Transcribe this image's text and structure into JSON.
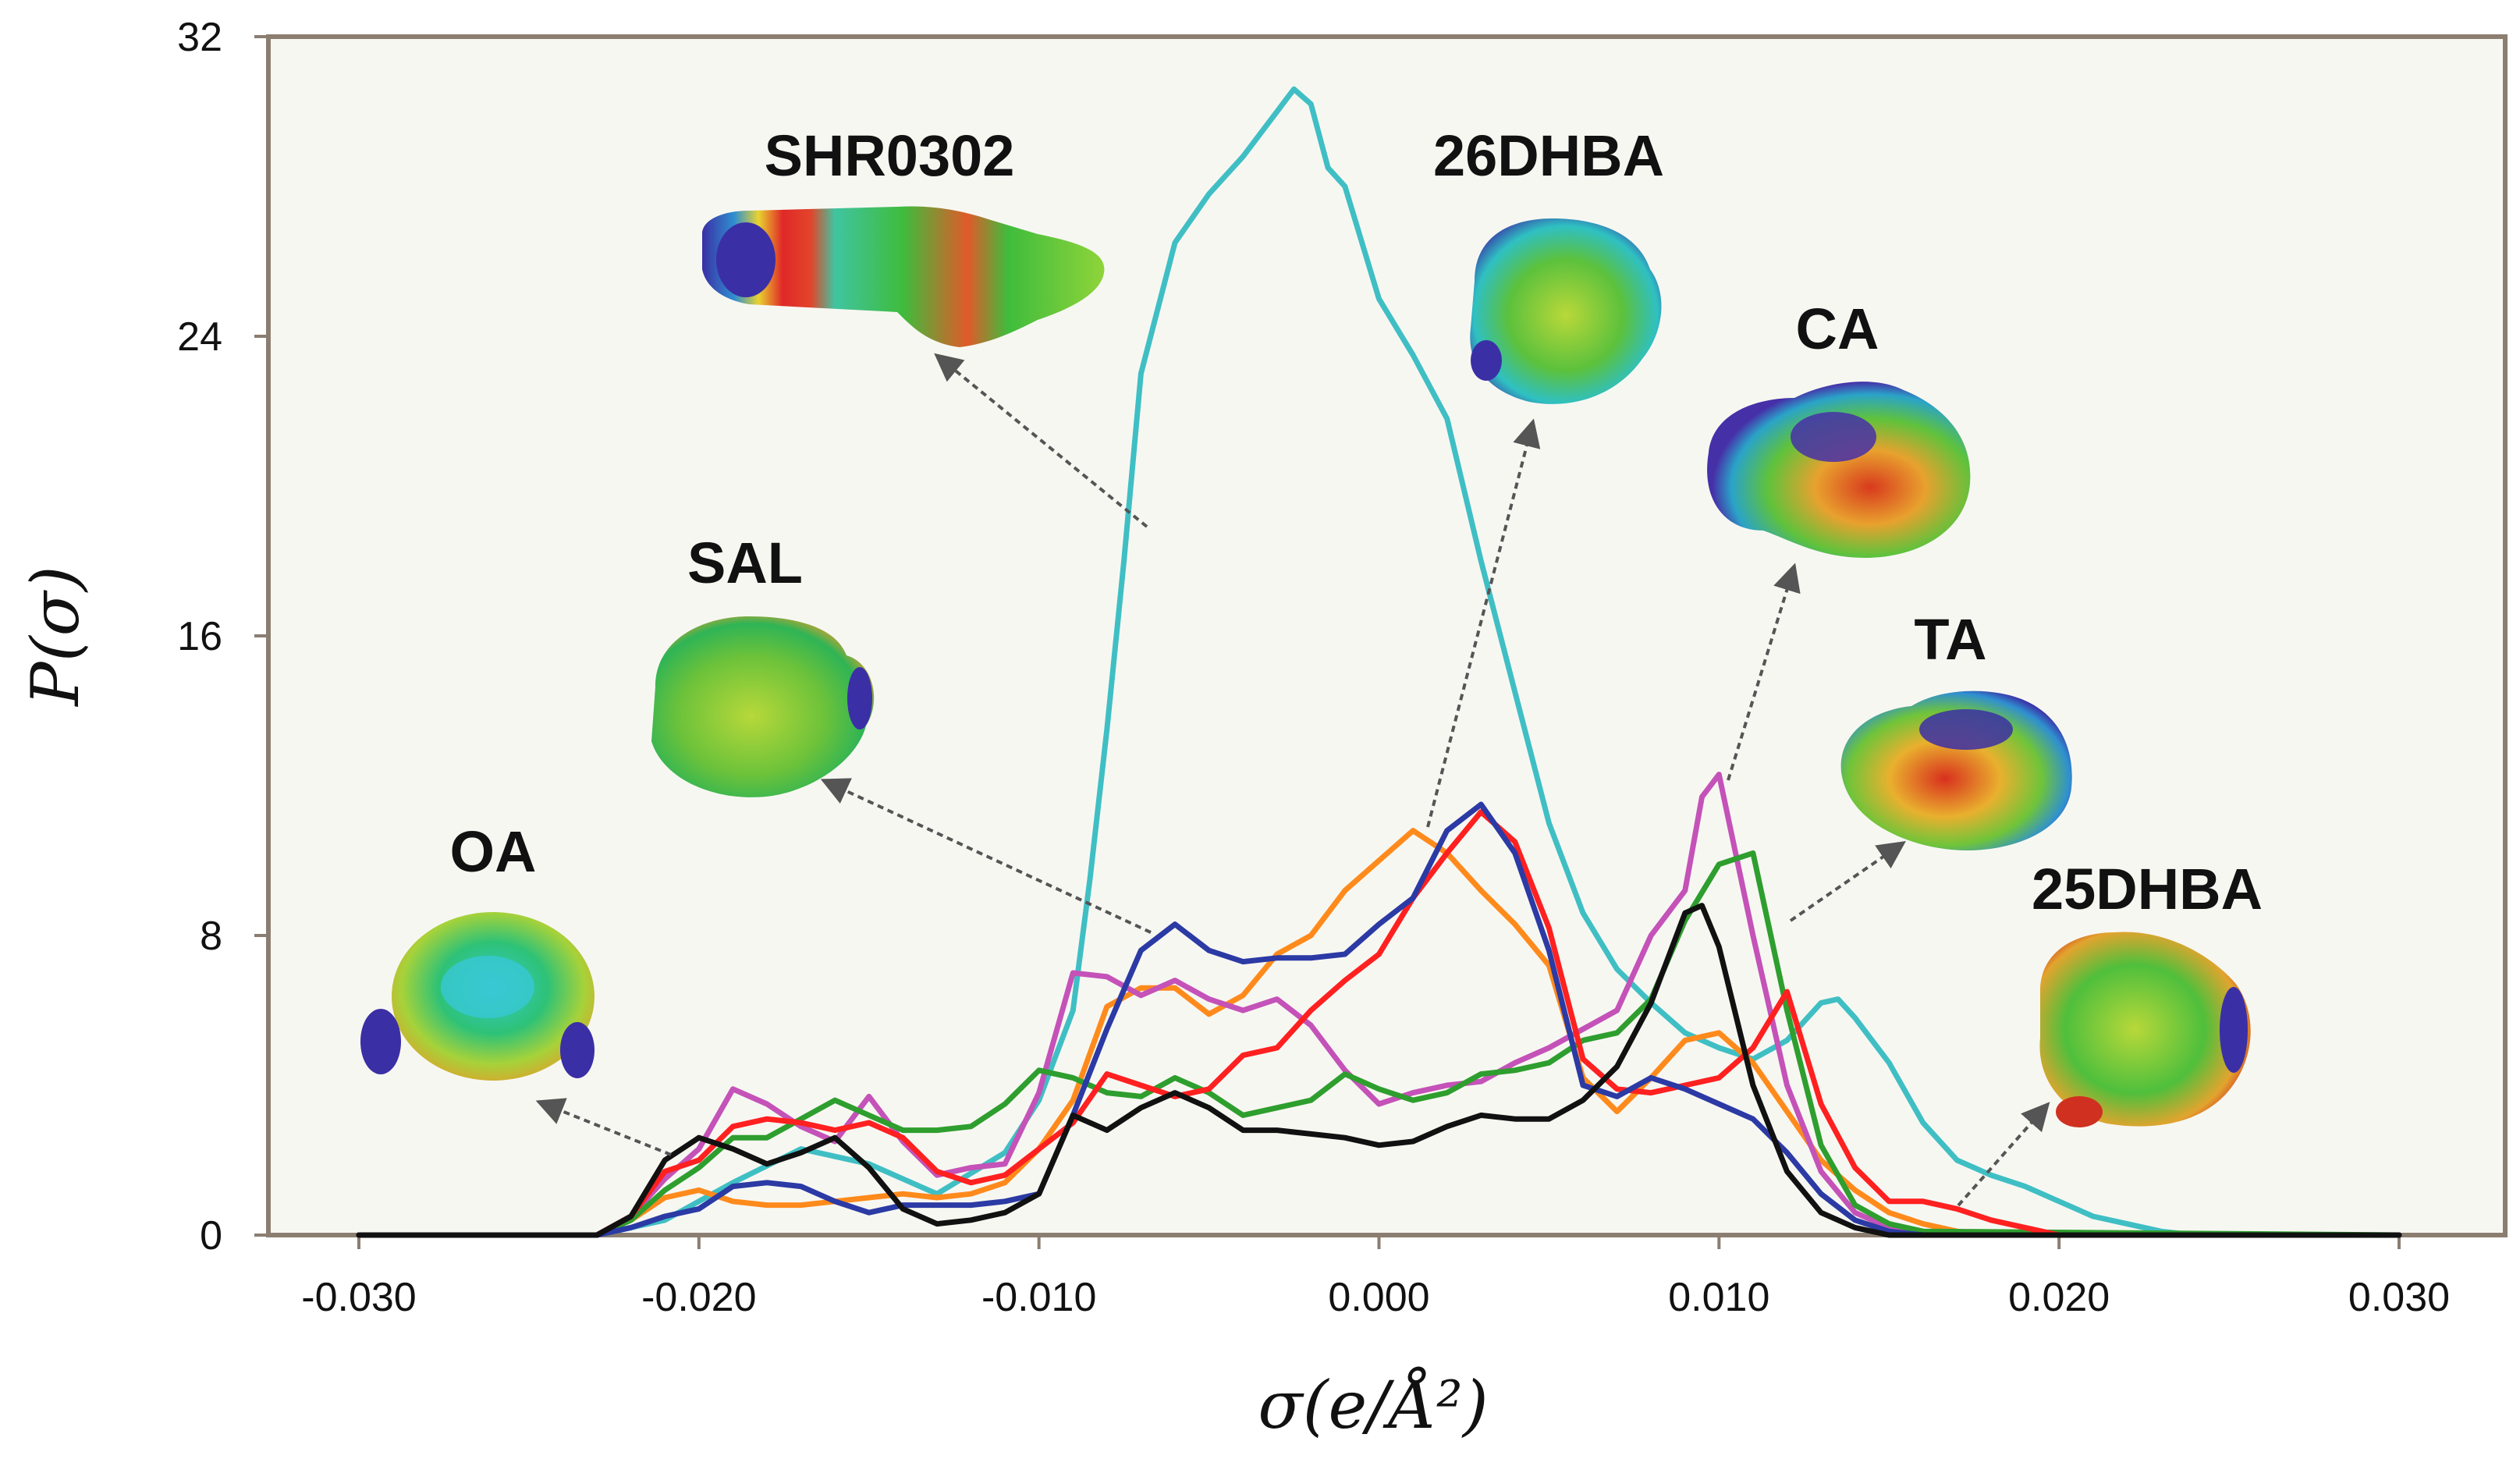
{
  "chart_data": {
    "type": "line",
    "title": "",
    "xlabel": "σ(e/Å²)",
    "ylabel": "P(σ)",
    "xlim": [
      -0.03,
      0.03
    ],
    "ylim": [
      0,
      32
    ],
    "x_ticks": [
      "-0.030",
      "-0.020",
      "-0.010",
      "0.000",
      "0.010",
      "0.020",
      "0.030"
    ],
    "y_ticks": [
      "0",
      "8",
      "16",
      "24",
      "32"
    ],
    "grid": false,
    "series": [
      {
        "name": "SHR0302",
        "color": "#3fbfc4",
        "x": [
          -0.03,
          -0.023,
          -0.021,
          -0.019,
          -0.017,
          -0.015,
          -0.013,
          -0.011,
          -0.01,
          -0.009,
          -0.0085,
          -0.008,
          -0.0075,
          -0.007,
          -0.006,
          -0.005,
          -0.004,
          -0.003,
          -0.0025,
          -0.002,
          -0.0015,
          -0.001,
          0.0,
          0.001,
          0.002,
          0.003,
          0.004,
          0.005,
          0.006,
          0.007,
          0.008,
          0.009,
          0.01,
          0.011,
          0.012,
          0.013,
          0.0135,
          0.014,
          0.015,
          0.016,
          0.017,
          0.018,
          0.019,
          0.02,
          0.021,
          0.022,
          0.023,
          0.024,
          0.03
        ],
        "y": [
          0,
          0,
          0.4,
          1.4,
          2.3,
          1.9,
          1.1,
          2.2,
          3.6,
          6.0,
          9.5,
          13.5,
          18.0,
          23.0,
          26.5,
          27.8,
          28.8,
          30.0,
          30.6,
          30.2,
          28.5,
          28.0,
          25.0,
          23.5,
          21.8,
          18.0,
          14.5,
          11.0,
          8.6,
          7.1,
          6.2,
          5.4,
          5.0,
          4.7,
          5.2,
          6.2,
          6.3,
          5.8,
          4.6,
          3.0,
          2.0,
          1.6,
          1.3,
          0.9,
          0.5,
          0.3,
          0.1,
          0,
          0
        ]
      },
      {
        "name": "26DHBA",
        "color": "#ff8a1c",
        "x": [
          -0.03,
          -0.023,
          -0.022,
          -0.021,
          -0.02,
          -0.019,
          -0.018,
          -0.017,
          -0.016,
          -0.015,
          -0.014,
          -0.013,
          -0.012,
          -0.011,
          -0.01,
          -0.009,
          -0.008,
          -0.007,
          -0.006,
          -0.005,
          -0.004,
          -0.003,
          -0.002,
          -0.001,
          0.0,
          0.001,
          0.002,
          0.003,
          0.004,
          0.005,
          0.006,
          0.007,
          0.008,
          0.009,
          0.01,
          0.011,
          0.012,
          0.013,
          0.014,
          0.015,
          0.016,
          0.017,
          0.018,
          0.019,
          0.03
        ],
        "y": [
          0,
          0,
          0.4,
          1.0,
          1.2,
          0.9,
          0.8,
          0.8,
          0.9,
          1.0,
          1.1,
          1.0,
          1.1,
          1.4,
          2.3,
          3.6,
          6.1,
          6.6,
          6.6,
          5.9,
          6.4,
          7.5,
          8.0,
          9.2,
          10.0,
          10.8,
          10.2,
          9.2,
          8.3,
          7.2,
          4.2,
          3.3,
          4.2,
          5.2,
          5.4,
          4.6,
          3.3,
          2.0,
          1.2,
          0.6,
          0.3,
          0.1,
          0,
          0,
          0
        ]
      },
      {
        "name": "CA",
        "color": "#c452b8",
        "x": [
          -0.03,
          -0.023,
          -0.022,
          -0.021,
          -0.02,
          -0.019,
          -0.018,
          -0.017,
          -0.016,
          -0.015,
          -0.014,
          -0.013,
          -0.012,
          -0.011,
          -0.01,
          -0.009,
          -0.008,
          -0.007,
          -0.006,
          -0.005,
          -0.004,
          -0.003,
          -0.002,
          -0.001,
          0.0,
          0.001,
          0.002,
          0.003,
          0.004,
          0.005,
          0.006,
          0.007,
          0.008,
          0.009,
          0.0095,
          0.01,
          0.011,
          0.012,
          0.013,
          0.014,
          0.015,
          0.016,
          0.017,
          0.03
        ],
        "y": [
          0,
          0,
          0.5,
          1.5,
          2.3,
          3.9,
          3.5,
          2.9,
          2.5,
          3.7,
          2.5,
          1.6,
          1.8,
          1.9,
          3.8,
          7.0,
          6.9,
          6.4,
          6.8,
          6.3,
          6.0,
          6.3,
          5.6,
          4.4,
          3.5,
          3.8,
          4.0,
          4.1,
          4.6,
          5.0,
          5.5,
          6.0,
          8.0,
          9.2,
          11.7,
          12.3,
          8.0,
          4.0,
          1.7,
          0.6,
          0.2,
          0.1,
          0,
          0
        ]
      },
      {
        "name": "TA",
        "color": "#2e9e2e",
        "x": [
          -0.03,
          -0.023,
          -0.022,
          -0.021,
          -0.02,
          -0.019,
          -0.018,
          -0.017,
          -0.016,
          -0.015,
          -0.014,
          -0.013,
          -0.012,
          -0.011,
          -0.01,
          -0.009,
          -0.008,
          -0.007,
          -0.006,
          -0.005,
          -0.004,
          -0.003,
          -0.002,
          -0.001,
          0.0,
          0.001,
          0.002,
          0.003,
          0.004,
          0.005,
          0.006,
          0.007,
          0.008,
          0.009,
          0.01,
          0.011,
          0.012,
          0.013,
          0.014,
          0.015,
          0.016,
          0.03
        ],
        "y": [
          0,
          0,
          0.4,
          1.2,
          1.8,
          2.6,
          2.6,
          3.1,
          3.6,
          3.2,
          2.8,
          2.8,
          2.9,
          3.5,
          4.4,
          4.2,
          3.8,
          3.7,
          4.2,
          3.8,
          3.2,
          3.4,
          3.6,
          4.3,
          3.9,
          3.6,
          3.8,
          4.3,
          4.4,
          4.6,
          5.2,
          5.4,
          6.3,
          8.4,
          9.9,
          10.2,
          6.0,
          2.4,
          0.8,
          0.3,
          0.1,
          0
        ]
      },
      {
        "name": "25DHBA",
        "color": "#ff2020",
        "x": [
          -0.03,
          -0.023,
          -0.022,
          -0.021,
          -0.02,
          -0.019,
          -0.018,
          -0.017,
          -0.016,
          -0.015,
          -0.014,
          -0.013,
          -0.012,
          -0.011,
          -0.01,
          -0.009,
          -0.008,
          -0.007,
          -0.006,
          -0.005,
          -0.004,
          -0.003,
          -0.002,
          -0.001,
          0.0,
          0.001,
          0.002,
          0.003,
          0.004,
          0.005,
          0.006,
          0.007,
          0.008,
          0.009,
          0.01,
          0.011,
          0.012,
          0.013,
          0.014,
          0.015,
          0.016,
          0.017,
          0.018,
          0.019,
          0.02,
          0.03
        ],
        "y": [
          0,
          0,
          0.5,
          1.7,
          2.0,
          2.9,
          3.1,
          3.0,
          2.8,
          3.0,
          2.6,
          1.7,
          1.4,
          1.6,
          2.3,
          3.0,
          4.3,
          4.0,
          3.7,
          3.9,
          4.8,
          5.0,
          6.0,
          6.8,
          7.5,
          9.0,
          10.2,
          11.3,
          10.5,
          8.2,
          4.7,
          3.9,
          3.8,
          4.0,
          4.2,
          5.0,
          6.5,
          3.5,
          1.8,
          0.9,
          0.9,
          0.7,
          0.4,
          0.2,
          0,
          0
        ]
      },
      {
        "name": "SAL",
        "color": "#2b3aa4",
        "x": [
          -0.03,
          -0.023,
          -0.022,
          -0.021,
          -0.02,
          -0.019,
          -0.018,
          -0.017,
          -0.016,
          -0.015,
          -0.014,
          -0.013,
          -0.012,
          -0.011,
          -0.01,
          -0.009,
          -0.008,
          -0.007,
          -0.006,
          -0.005,
          -0.004,
          -0.003,
          -0.002,
          -0.001,
          0.0,
          0.001,
          0.002,
          0.003,
          0.004,
          0.005,
          0.006,
          0.007,
          0.008,
          0.009,
          0.01,
          0.011,
          0.012,
          0.013,
          0.014,
          0.015,
          0.016,
          0.03
        ],
        "y": [
          0,
          0,
          0.2,
          0.5,
          0.7,
          1.3,
          1.4,
          1.3,
          0.9,
          0.6,
          0.8,
          0.8,
          0.8,
          0.9,
          1.1,
          3.2,
          5.5,
          7.6,
          8.3,
          7.6,
          7.3,
          7.4,
          7.4,
          7.5,
          8.3,
          9.0,
          10.8,
          11.5,
          10.2,
          7.6,
          4.0,
          3.7,
          4.2,
          3.9,
          3.5,
          3.1,
          2.2,
          1.1,
          0.4,
          0.1,
          0,
          0
        ]
      },
      {
        "name": "OA",
        "color": "#111111",
        "x": [
          -0.03,
          -0.023,
          -0.022,
          -0.021,
          -0.02,
          -0.019,
          -0.018,
          -0.017,
          -0.016,
          -0.015,
          -0.014,
          -0.013,
          -0.012,
          -0.011,
          -0.01,
          -0.009,
          -0.008,
          -0.007,
          -0.006,
          -0.005,
          -0.004,
          -0.003,
          -0.002,
          -0.001,
          0.0,
          0.001,
          0.002,
          0.003,
          0.004,
          0.005,
          0.006,
          0.007,
          0.008,
          0.009,
          0.0095,
          0.01,
          0.011,
          0.012,
          0.013,
          0.014,
          0.015,
          0.03
        ],
        "y": [
          0,
          0,
          0.5,
          2.0,
          2.6,
          2.3,
          1.9,
          2.2,
          2.6,
          1.8,
          0.7,
          0.3,
          0.4,
          0.6,
          1.1,
          3.2,
          2.8,
          3.4,
          3.8,
          3.4,
          2.8,
          2.8,
          2.7,
          2.6,
          2.4,
          2.5,
          2.9,
          3.2,
          3.1,
          3.1,
          3.6,
          4.5,
          6.2,
          8.6,
          8.8,
          7.7,
          4.0,
          1.7,
          0.6,
          0.2,
          0,
          0
        ]
      }
    ],
    "annotations": [
      {
        "label": "SHR0302",
        "series": "SHR0302",
        "target_x": -0.0065,
        "target_y": 19.0
      },
      {
        "label": "26DHBA",
        "series": "26DHBA",
        "target_x": 0.0015,
        "target_y": 11.0
      },
      {
        "label": "CA",
        "series": "CA",
        "target_x": 0.0097,
        "target_y": 12.3
      },
      {
        "label": "TA",
        "series": "TA",
        "target_x": 0.0122,
        "target_y": 8.4
      },
      {
        "label": "25DHBA",
        "series": "25DHBA",
        "target_x": 0.017,
        "target_y": 1.0
      },
      {
        "label": "SAL",
        "series": "SAL",
        "target_x": -0.0068,
        "target_y": 8.0
      },
      {
        "label": "OA",
        "series": "OA",
        "target_x": -0.0205,
        "target_y": 2.3
      }
    ]
  },
  "colors": {
    "plot_background": "#f7f7f2",
    "frame": "#8b7d70",
    "arrow": "#555555",
    "text": "#111111"
  }
}
